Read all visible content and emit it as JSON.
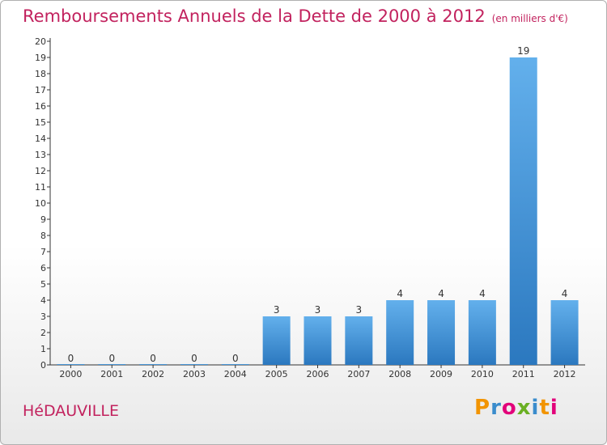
{
  "header": {
    "title": "Remboursements Annuels de la Dette de 2000 à 2012",
    "unit": "(en milliers d'€)"
  },
  "footer": {
    "commune": "HéDAUVILLE",
    "logo_text": "Proxiti"
  },
  "colors": {
    "title": "#c2225e",
    "bar_top": "#63b0ec",
    "bar_bottom": "#2b78bf",
    "logo_letters": [
      "#f29400",
      "#3a8ccc",
      "#e2007a",
      "#6ab023",
      "#3a8ccc",
      "#f29400",
      "#e2007a"
    ]
  },
  "chart_data": {
    "type": "bar",
    "categories": [
      "2000",
      "2001",
      "2002",
      "2003",
      "2004",
      "2005",
      "2006",
      "2007",
      "2008",
      "2009",
      "2010",
      "2011",
      "2012"
    ],
    "values": [
      0,
      0,
      0,
      0,
      0,
      3,
      3,
      3,
      4,
      4,
      4,
      19,
      4
    ],
    "data_labels": [
      "0",
      "0",
      "0",
      "0",
      "0",
      "3",
      "3",
      "3",
      "4",
      "4",
      "4",
      "19",
      "4"
    ],
    "y_ticks": [
      "0",
      "1",
      "2",
      "3",
      "4",
      "5",
      "6",
      "7",
      "8",
      "9",
      "10",
      "11",
      "12",
      "13",
      "14",
      "15",
      "16",
      "17",
      "18",
      "19",
      "20"
    ],
    "ylim": [
      0,
      20
    ],
    "grid": false,
    "legend": "none"
  }
}
